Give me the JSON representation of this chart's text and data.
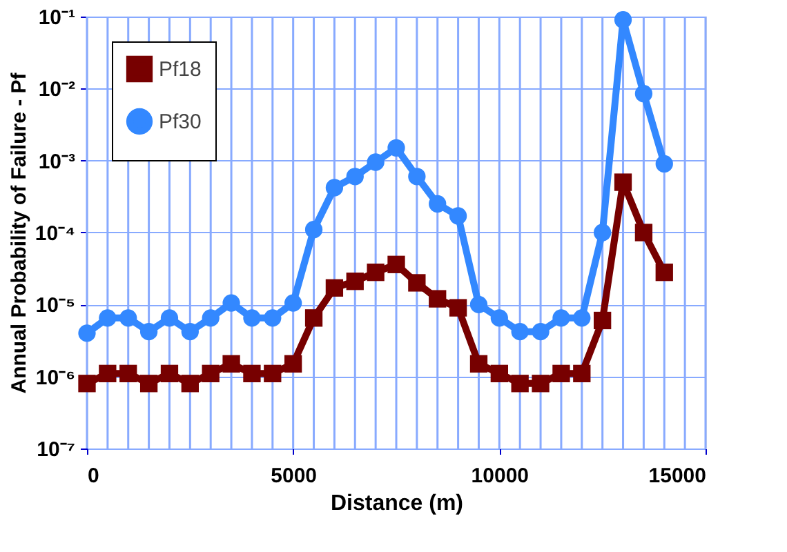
{
  "chart_data": {
    "type": "line",
    "xlabel": "Distance (m)",
    "ylabel": "Annual Probability of Failure - Pf",
    "x": [
      0,
      500,
      1000,
      1500,
      2000,
      2500,
      3000,
      3500,
      4000,
      4500,
      5000,
      5500,
      6000,
      6500,
      7000,
      7500,
      8000,
      8500,
      9000,
      9500,
      10000,
      10500,
      11000,
      11500,
      12000,
      12500,
      13000,
      13500,
      14000
    ],
    "series": [
      {
        "name": "Pf18",
        "color": "#770000",
        "marker": "square",
        "values": [
          8e-07,
          1.1e-06,
          1.1e-06,
          8e-07,
          1.1e-06,
          8e-07,
          1.1e-06,
          1.5e-06,
          1.1e-06,
          1.1e-06,
          1.5e-06,
          6.5e-06,
          1.7e-05,
          2.1e-05,
          2.8e-05,
          3.6e-05,
          2e-05,
          1.2e-05,
          9e-06,
          1.5e-06,
          1.1e-06,
          8e-07,
          8e-07,
          1.1e-06,
          1.1e-06,
          6e-06,
          0.0005,
          0.0001,
          2.8e-05
        ]
      },
      {
        "name": "Pf30",
        "color": "#3388ff",
        "marker": "circle",
        "values": [
          4e-06,
          6.5e-06,
          6.5e-06,
          4.2e-06,
          6.5e-06,
          4.2e-06,
          6.5e-06,
          1.05e-05,
          6.5e-06,
          6.5e-06,
          1.05e-05,
          0.00011,
          0.00042,
          0.0006,
          0.00095,
          0.0015,
          0.0006,
          0.00025,
          0.00017,
          1e-05,
          6.5e-06,
          4.2e-06,
          4.2e-06,
          6.5e-06,
          6.5e-06,
          0.0001,
          0.09,
          0.0085,
          0.0009
        ]
      }
    ],
    "log": "y",
    "xlim": [
      0,
      15000
    ],
    "xticks": [
      0,
      5000,
      10000,
      15000
    ],
    "ylim": [
      1e-07,
      0.1
    ],
    "yticks": [
      {
        "value": 1e-07,
        "label": "10⁻⁷"
      },
      {
        "value": 1e-06,
        "label": "10⁻⁶"
      },
      {
        "value": 1e-05,
        "label": "10⁻⁵"
      },
      {
        "value": 0.0001,
        "label": "10⁻⁴"
      },
      {
        "value": 0.001,
        "label": "10⁻³"
      },
      {
        "value": 0.01,
        "label": "10⁻²"
      },
      {
        "value": 0.1,
        "label": "10⁻¹"
      }
    ],
    "grid": true,
    "legend": "top left",
    "line_style": "solid"
  }
}
